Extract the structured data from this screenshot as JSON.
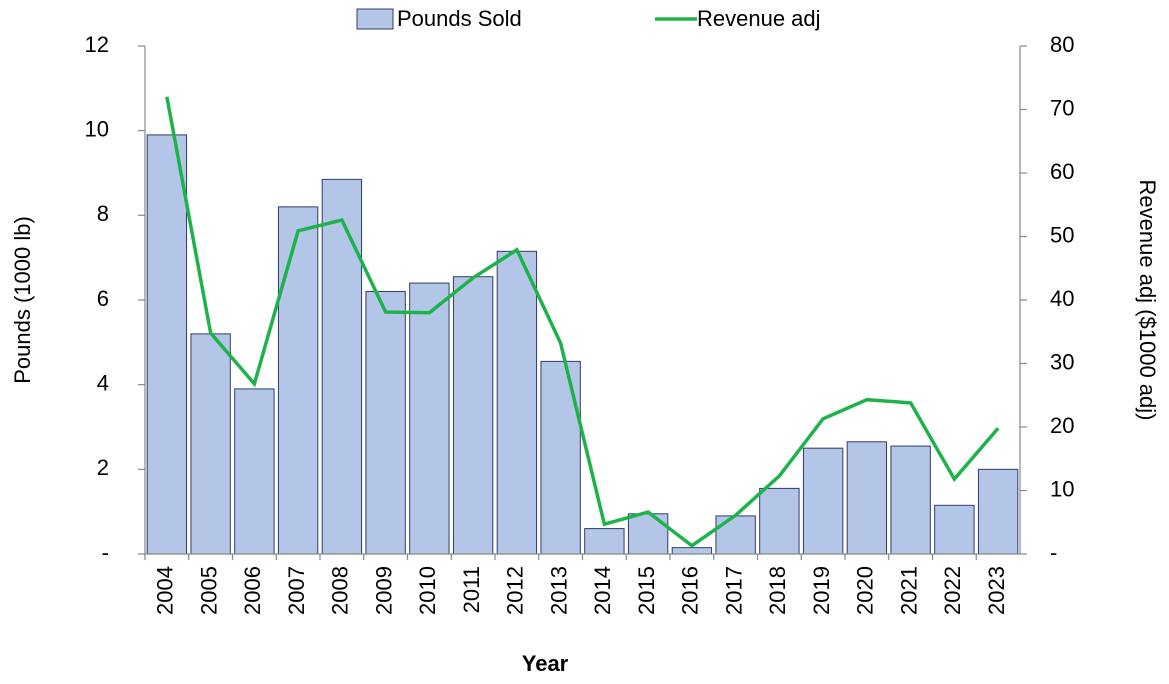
{
  "chart_data": {
    "type": "bar-line",
    "categories": [
      "2004",
      "2005",
      "2006",
      "2007",
      "2008",
      "2009",
      "2010",
      "2011",
      "2012",
      "2013",
      "2014",
      "2015",
      "2016",
      "2017",
      "2018",
      "2019",
      "2020",
      "2021",
      "2022",
      "2023"
    ],
    "series": [
      {
        "name": "Pounds Sold",
        "type": "bar",
        "color": "#b4c6e7",
        "values": [
          9.9,
          5.2,
          3.9,
          8.2,
          8.85,
          6.2,
          6.4,
          6.55,
          7.15,
          4.55,
          0.6,
          0.95,
          0.15,
          0.9,
          1.55,
          2.5,
          2.65,
          2.55,
          1.15,
          2.0
        ]
      },
      {
        "name": "Revenue adj",
        "type": "line",
        "axis": "y2",
        "color": "#1db34a",
        "values": [
          72,
          34.8,
          26.8,
          50.9,
          52.6,
          38.1,
          38,
          43.5,
          47.9,
          33.2,
          4.7,
          6.6,
          1.3,
          6.1,
          12.3,
          21.3,
          24.3,
          23.8,
          11.8,
          19.8
        ]
      }
    ],
    "xlabel": "Year",
    "ylabel": "Pounds (1000 lb)",
    "y2label": "Revenue adj ($1000 adj)",
    "ylim": [
      0,
      12
    ],
    "yticks": [
      {
        "value": 0,
        "label": "-"
      },
      2,
      4,
      6,
      8,
      10,
      12
    ],
    "y2lim": [
      0,
      80
    ],
    "y2ticks": [
      {
        "value": 0,
        "label": "-"
      },
      10,
      20,
      30,
      40,
      50,
      60,
      70,
      80
    ],
    "legend": "top"
  }
}
